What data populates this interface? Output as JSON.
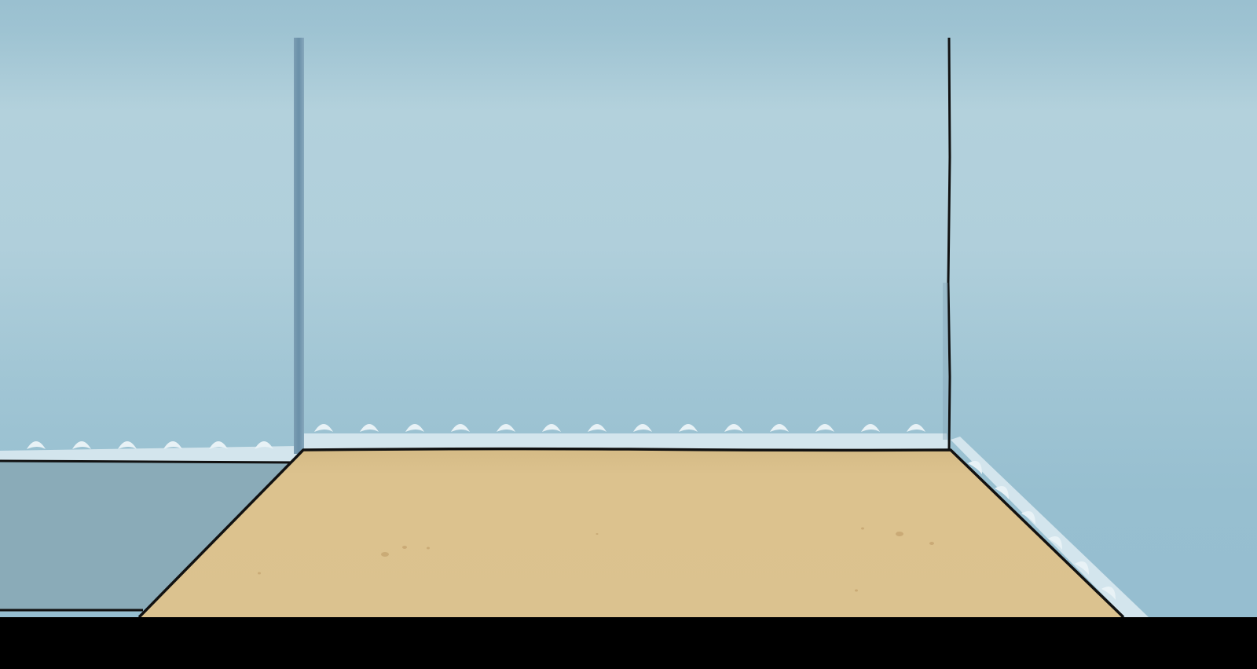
{
  "scene": {
    "type": "aquarium tank interior (empty)",
    "colors": {
      "water_top": "#9bc0cf",
      "water_mid": "#b3d1dc",
      "water_bottom": "#98bfd1",
      "left_tank_floor": "#8aabb8",
      "sand": "#dcc28e",
      "sand_speck": "#c6a571",
      "outline": "#111111",
      "wave_foam": "#dbeaf1",
      "left_corner_post": "#6f93ab",
      "bottom_bar": "#000000"
    }
  }
}
